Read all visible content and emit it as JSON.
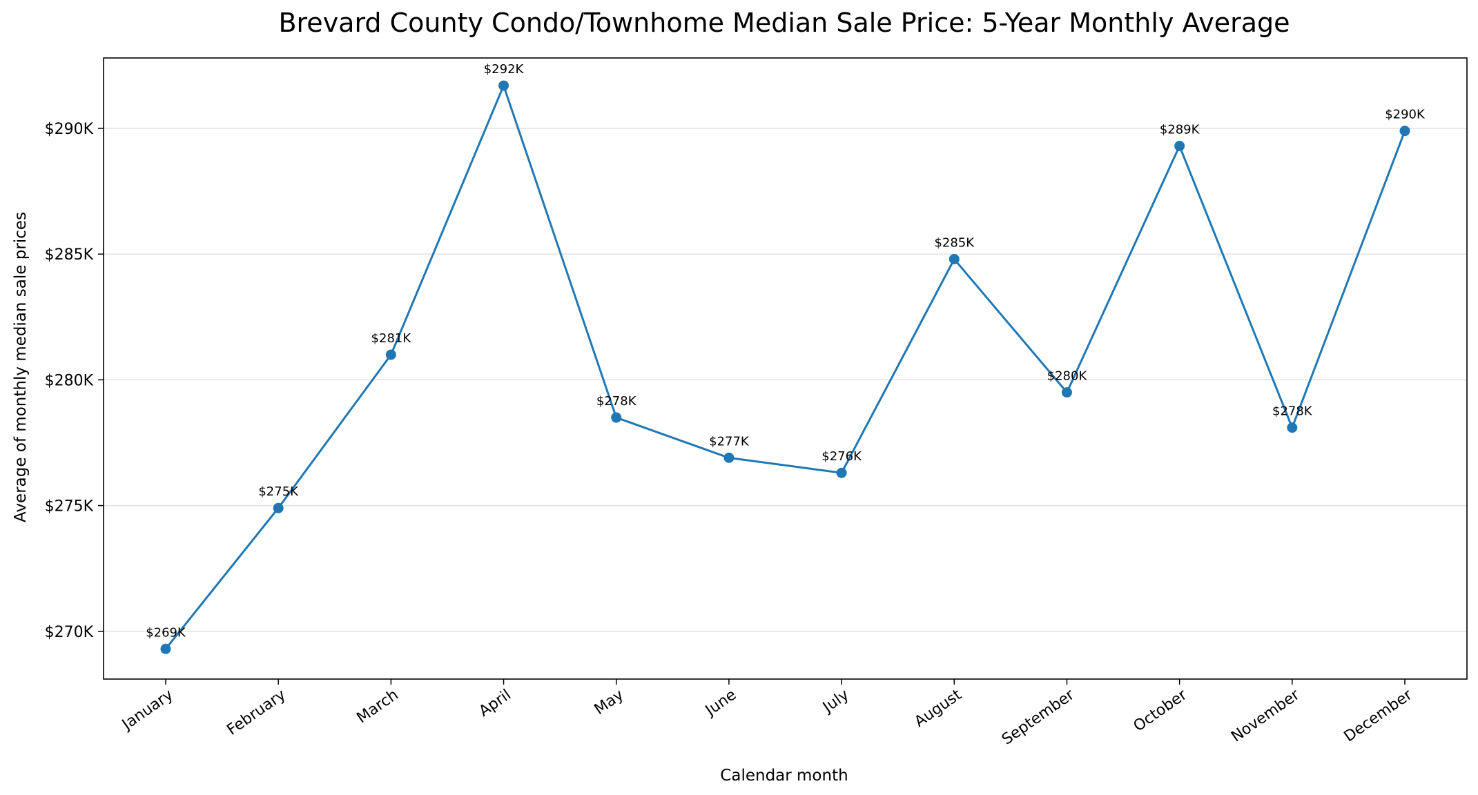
{
  "chart_data": {
    "type": "line",
    "title": "Brevard County Condo/Townhome Median Sale Price: 5-Year Monthly Average",
    "xlabel": "Calendar month",
    "ylabel": "Average of monthly median sale prices",
    "categories": [
      "January",
      "February",
      "March",
      "April",
      "May",
      "June",
      "July",
      "August",
      "September",
      "October",
      "November",
      "December"
    ],
    "series": [
      {
        "values": [
          269300,
          274900,
          281000,
          291700,
          278500,
          276900,
          276300,
          284800,
          279500,
          289300,
          278100,
          289900
        ],
        "data_labels": [
          "$269K",
          "$275K",
          "$281K",
          "$292K",
          "$278K",
          "$277K",
          "$276K",
          "$285K",
          "$280K",
          "$289K",
          "$278K",
          "$290K"
        ],
        "color": "#1f77b4"
      }
    ],
    "yticks": [
      270000,
      275000,
      280000,
      285000,
      290000
    ],
    "ytick_labels": [
      "$270K",
      "$275K",
      "$280K",
      "$285K",
      "$290K"
    ],
    "ylim": [
      268100,
      292800
    ],
    "grid": "horizontal",
    "legend": "none"
  }
}
